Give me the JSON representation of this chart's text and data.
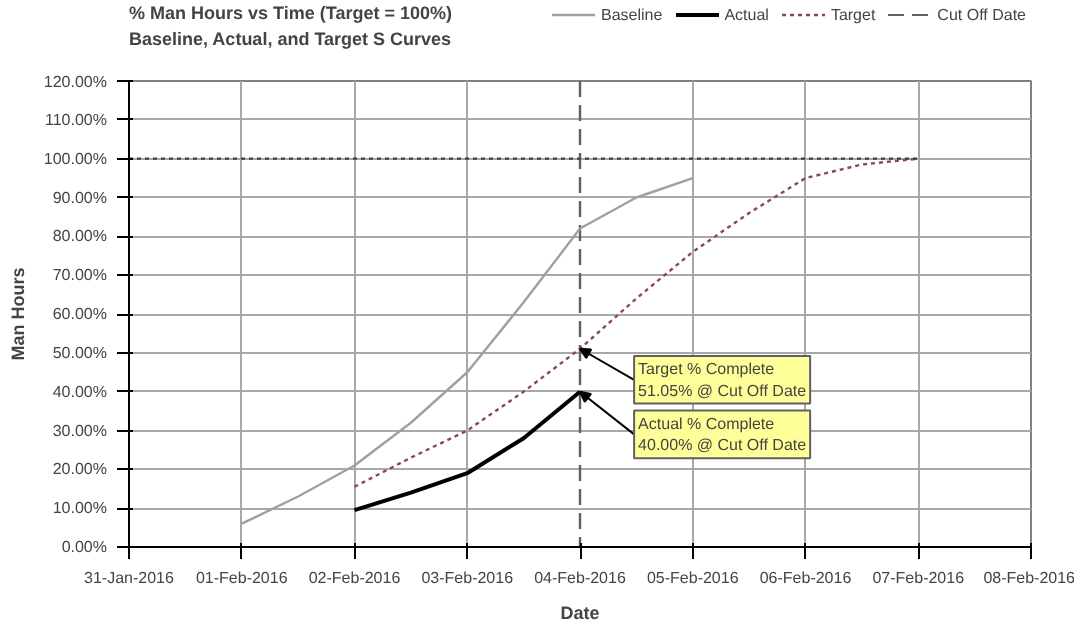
{
  "chart_data": {
    "type": "line",
    "title": "% Man Hours vs Time (Target = 100%)",
    "subtitle": "Baseline, Actual, and Target S Curves",
    "xlabel": "Date",
    "ylabel": "Man Hours",
    "series": [
      {
        "name": "Baseline",
        "color": "#a0a0a0",
        "line_style": "solid",
        "x": [
          "2016-02-01T00:00",
          "2016-02-01T12:00",
          "2016-02-02T00:00",
          "2016-02-02T12:00",
          "2016-02-03T00:00",
          "2016-02-03T12:00",
          "2016-02-04T00:00",
          "2016-02-04T12:00",
          "2016-02-05T00:00"
        ],
        "values": [
          6,
          13,
          21,
          32,
          45,
          63,
          82,
          90,
          95
        ]
      },
      {
        "name": "Actual",
        "color": "#000000",
        "line_style": "solid",
        "x": [
          "2016-02-02T00:00",
          "2016-02-02T12:00",
          "2016-02-03T00:00",
          "2016-02-03T12:00",
          "2016-02-04T00:00"
        ],
        "values": [
          9.5,
          14,
          19,
          28,
          40
        ]
      },
      {
        "name": "Target",
        "color": "#8b4a4a",
        "line_style": "dotted",
        "x": [
          "2016-02-02T00:00",
          "2016-02-02T12:00",
          "2016-02-03T00:00",
          "2016-02-03T12:00",
          "2016-02-04T00:00",
          "2016-02-04T12:00",
          "2016-02-05T00:00",
          "2016-02-05T12:00",
          "2016-02-06T00:00",
          "2016-02-06T12:00",
          "2016-02-07T00:00"
        ],
        "values": [
          15.5,
          23,
          30,
          40,
          51.05,
          64,
          76,
          86,
          95,
          98.5,
          100
        ]
      },
      {
        "color": "#404040",
        "line_style": "dotted",
        "x": [
          "2016-01-31T00:00",
          "2016-02-07T00:00"
        ],
        "values": [
          100,
          100
        ]
      }
    ],
    "ref_lines": [
      {
        "axis": "x",
        "value": "2016-02-04T00:00",
        "label": "Cut Off Date",
        "color": "#606060",
        "line_style": "dashed"
      }
    ],
    "annotations": [
      {
        "text": "Target % Complete\n51.05% @ Cut Off Date",
        "x": "2016-02-04T00:00",
        "y": 51.05
      },
      {
        "text": "Actual % Complete\n40.00% @ Cut Off Date",
        "x": "2016-02-04T00:00",
        "y": 40
      }
    ],
    "xlim": [
      "2016-01-31T00:00",
      "2016-02-08T00:00"
    ],
    "xticks": [
      {
        "value": "2016-01-31T00:00",
        "label": "31-Jan-2016"
      },
      {
        "value": "2016-02-01T00:00",
        "label": "01-Feb-2016"
      },
      {
        "value": "2016-02-02T00:00",
        "label": "02-Feb-2016"
      },
      {
        "value": "2016-02-03T00:00",
        "label": "03-Feb-2016"
      },
      {
        "value": "2016-02-04T00:00",
        "label": "04-Feb-2016"
      },
      {
        "value": "2016-02-05T00:00",
        "label": "05-Feb-2016"
      },
      {
        "value": "2016-02-06T00:00",
        "label": "06-Feb-2016"
      },
      {
        "value": "2016-02-07T00:00",
        "label": "07-Feb-2016"
      },
      {
        "value": "2016-02-08T00:00",
        "label": "08-Feb-2016"
      }
    ],
    "ylim": [
      0,
      120
    ],
    "yticks": [
      {
        "value": 0,
        "label": "0.00%"
      },
      {
        "value": 10,
        "label": "10.00%"
      },
      {
        "value": 20,
        "label": "20.00%"
      },
      {
        "value": 30,
        "label": "30.00%"
      },
      {
        "value": 40,
        "label": "40.00%"
      },
      {
        "value": 50,
        "label": "50.00%"
      },
      {
        "value": 60,
        "label": "60.00%"
      },
      {
        "value": 70,
        "label": "70.00%"
      },
      {
        "value": 80,
        "label": "80.00%"
      },
      {
        "value": 90,
        "label": "90.00%"
      },
      {
        "value": 100,
        "label": "100.00%"
      },
      {
        "value": 110,
        "label": "110.00%"
      },
      {
        "value": 120,
        "label": "120.00%"
      }
    ],
    "grid": true,
    "legend": "top",
    "marker": "none"
  }
}
